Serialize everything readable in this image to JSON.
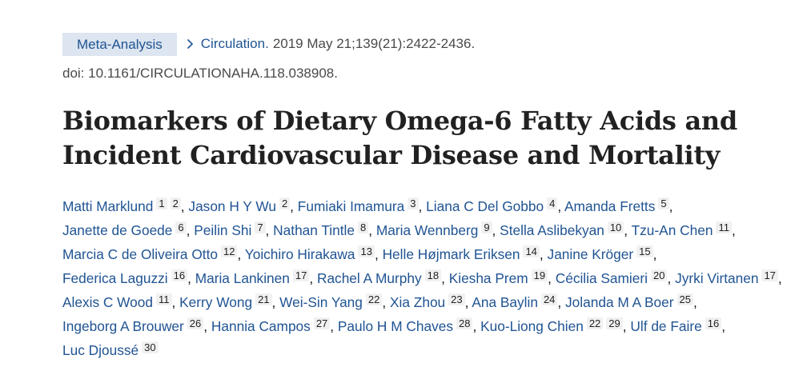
{
  "article": {
    "publication_type": "Meta-Analysis",
    "journal": "Circulation.",
    "citation": "2019 May 21;139(21):2422-2436.",
    "doi": "doi: 10.1161/CIRCULATIONAHA.118.038908.",
    "title": "Biomarkers of Dietary Omega-6 Fatty Acids and Incident Cardiovascular Disease and Mortality"
  },
  "authors": [
    {
      "name": "Matti Marklund",
      "affiliations": [
        "1",
        "2"
      ]
    },
    {
      "name": "Jason H Y Wu",
      "affiliations": [
        "2"
      ]
    },
    {
      "name": "Fumiaki Imamura",
      "affiliations": [
        "3"
      ]
    },
    {
      "name": "Liana C Del Gobbo",
      "affiliations": [
        "4"
      ]
    },
    {
      "name": "Amanda Fretts",
      "affiliations": [
        "5"
      ]
    },
    {
      "name": "Janette de Goede",
      "affiliations": [
        "6"
      ]
    },
    {
      "name": "Peilin Shi",
      "affiliations": [
        "7"
      ]
    },
    {
      "name": "Nathan Tintle",
      "affiliations": [
        "8"
      ]
    },
    {
      "name": "Maria Wennberg",
      "affiliations": [
        "9"
      ]
    },
    {
      "name": "Stella Aslibekyan",
      "affiliations": [
        "10"
      ]
    },
    {
      "name": "Tzu-An Chen",
      "affiliations": [
        "11"
      ]
    },
    {
      "name": "Marcia C de Oliveira Otto",
      "affiliations": [
        "12"
      ]
    },
    {
      "name": "Yoichiro Hirakawa",
      "affiliations": [
        "13"
      ]
    },
    {
      "name": "Helle Højmark Eriksen",
      "affiliations": [
        "14"
      ]
    },
    {
      "name": "Janine Kröger",
      "affiliations": [
        "15"
      ]
    },
    {
      "name": "Federica Laguzzi",
      "affiliations": [
        "16"
      ]
    },
    {
      "name": "Maria Lankinen",
      "affiliations": [
        "17"
      ]
    },
    {
      "name": "Rachel A Murphy",
      "affiliations": [
        "18"
      ]
    },
    {
      "name": "Kiesha Prem",
      "affiliations": [
        "19"
      ]
    },
    {
      "name": "Cécilia Samieri",
      "affiliations": [
        "20"
      ]
    },
    {
      "name": "Jyrki Virtanen",
      "affiliations": [
        "17"
      ]
    },
    {
      "name": "Alexis C Wood",
      "affiliations": [
        "11"
      ]
    },
    {
      "name": "Kerry Wong",
      "affiliations": [
        "21"
      ]
    },
    {
      "name": "Wei-Sin Yang",
      "affiliations": [
        "22"
      ]
    },
    {
      "name": "Xia Zhou",
      "affiliations": [
        "23"
      ]
    },
    {
      "name": "Ana Baylin",
      "affiliations": [
        "24"
      ]
    },
    {
      "name": "Jolanda M A Boer",
      "affiliations": [
        "25"
      ]
    },
    {
      "name": "Ingeborg A Brouwer",
      "affiliations": [
        "26"
      ]
    },
    {
      "name": "Hannia Campos",
      "affiliations": [
        "27"
      ]
    },
    {
      "name": "Paulo H M Chaves",
      "affiliations": [
        "28"
      ]
    },
    {
      "name": "Kuo-Liong Chien",
      "affiliations": [
        "22",
        "29"
      ]
    },
    {
      "name": "Ulf de Faire",
      "affiliations": [
        "16"
      ]
    },
    {
      "name": "Luc Djoussé",
      "affiliations": [
        "30"
      ]
    }
  ],
  "icons": {
    "journal_link": "chevron-right-icon"
  },
  "colors": {
    "link": "#205493",
    "badge_bg": "#dce5f0",
    "affil_bg": "#f1f1f1"
  }
}
